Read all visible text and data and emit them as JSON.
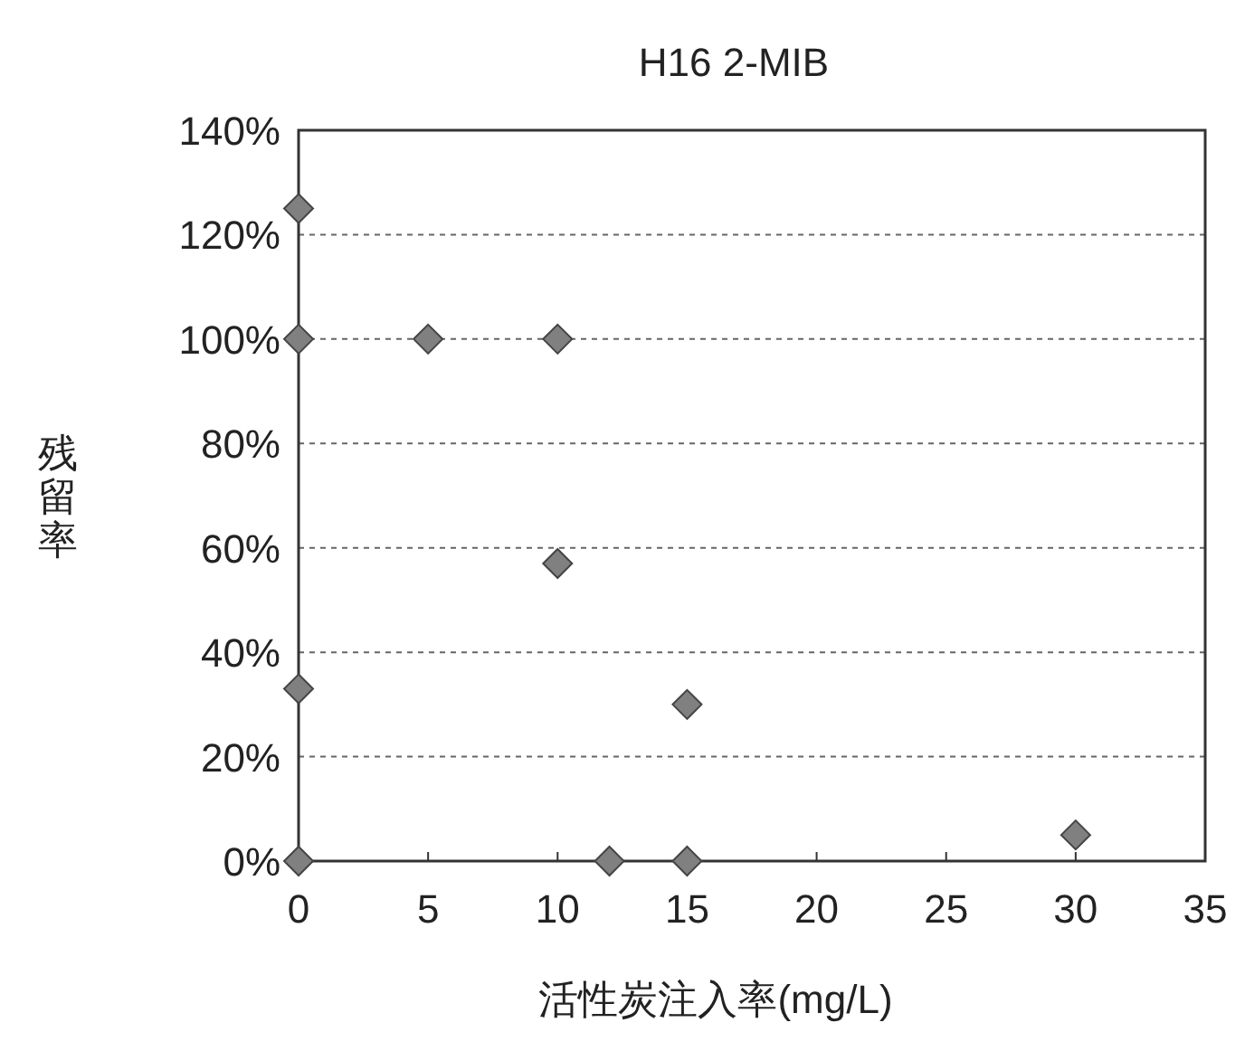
{
  "chart_data": {
    "type": "scatter",
    "title": "H16 2-MIB",
    "xlabel": "活性炭注入率(mg/L)",
    "ylabel": "残留率",
    "x": [
      0,
      0,
      5,
      10,
      10,
      0,
      15,
      30,
      0,
      12,
      15
    ],
    "series": [
      {
        "color": "#808080",
        "values": [
          125,
          100,
          100,
          100,
          57,
          33,
          30,
          5,
          0,
          0,
          0
        ]
      }
    ],
    "xlim": [
      0,
      35
    ],
    "xticks": [
      0,
      5,
      10,
      15,
      20,
      25,
      30,
      35
    ],
    "ylim": [
      0,
      140
    ],
    "yticks": [
      {
        "value": 0,
        "label": "0%"
      },
      {
        "value": 20,
        "label": "20%"
      },
      {
        "value": 40,
        "label": "40%"
      },
      {
        "value": 60,
        "label": "60%"
      },
      {
        "value": 80,
        "label": "80%"
      },
      {
        "value": 100,
        "label": "100%"
      },
      {
        "value": 120,
        "label": "120%"
      },
      {
        "value": 140,
        "label": "140%"
      }
    ],
    "grid": "y",
    "marker": "diamond"
  }
}
